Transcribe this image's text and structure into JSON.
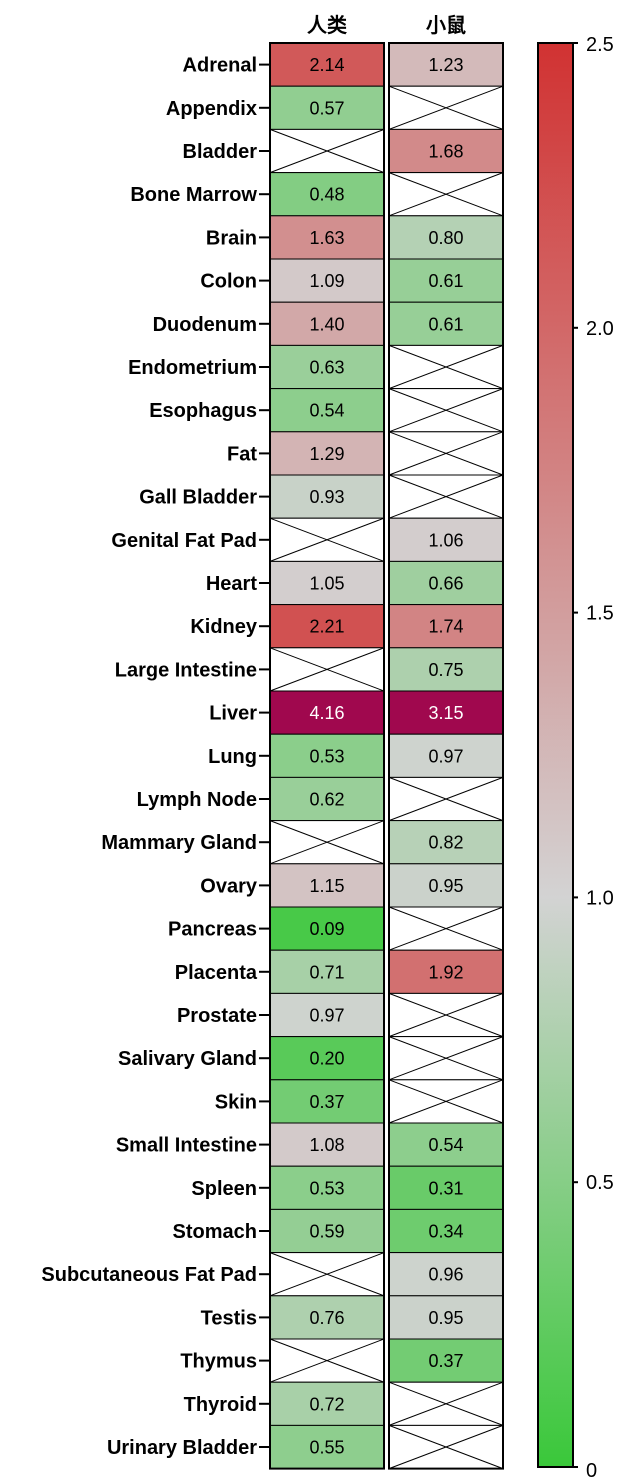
{
  "chart_data": {
    "type": "heatmap",
    "columns": [
      "人类",
      "小鼠"
    ],
    "rows": [
      {
        "label": "Adrenal",
        "values": [
          2.14,
          1.23
        ]
      },
      {
        "label": "Appendix",
        "values": [
          0.57,
          null
        ]
      },
      {
        "label": "Bladder",
        "values": [
          null,
          1.68
        ]
      },
      {
        "label": "Bone Marrow",
        "values": [
          0.48,
          null
        ]
      },
      {
        "label": "Brain",
        "values": [
          1.63,
          0.8
        ]
      },
      {
        "label": "Colon",
        "values": [
          1.09,
          0.61
        ]
      },
      {
        "label": "Duodenum",
        "values": [
          1.4,
          0.61
        ]
      },
      {
        "label": "Endometrium",
        "values": [
          0.63,
          null
        ]
      },
      {
        "label": "Esophagus",
        "values": [
          0.54,
          null
        ]
      },
      {
        "label": "Fat",
        "values": [
          1.29,
          null
        ]
      },
      {
        "label": "Gall Bladder",
        "values": [
          0.93,
          null
        ]
      },
      {
        "label": "Genital Fat Pad",
        "values": [
          null,
          1.06
        ]
      },
      {
        "label": "Heart",
        "values": [
          1.05,
          0.66
        ]
      },
      {
        "label": "Kidney",
        "values": [
          2.21,
          1.74
        ]
      },
      {
        "label": "Large Intestine",
        "values": [
          null,
          0.75
        ]
      },
      {
        "label": "Liver",
        "values": [
          4.16,
          3.15
        ]
      },
      {
        "label": "Lung",
        "values": [
          0.53,
          0.97
        ]
      },
      {
        "label": "Lymph Node",
        "values": [
          0.62,
          null
        ]
      },
      {
        "label": "Mammary Gland",
        "values": [
          null,
          0.82
        ]
      },
      {
        "label": "Ovary",
        "values": [
          1.15,
          0.95
        ]
      },
      {
        "label": "Pancreas",
        "values": [
          0.09,
          null
        ]
      },
      {
        "label": "Placenta",
        "values": [
          0.71,
          1.92
        ]
      },
      {
        "label": "Prostate",
        "values": [
          0.97,
          null
        ]
      },
      {
        "label": "Salivary Gland",
        "values": [
          0.2,
          null
        ]
      },
      {
        "label": "Skin",
        "values": [
          0.37,
          null
        ]
      },
      {
        "label": "Small Intestine",
        "values": [
          1.08,
          0.54
        ]
      },
      {
        "label": "Spleen",
        "values": [
          0.53,
          0.31
        ]
      },
      {
        "label": "Stomach",
        "values": [
          0.59,
          0.34
        ]
      },
      {
        "label": "Subcutaneous Fat Pad",
        "values": [
          null,
          0.96
        ]
      },
      {
        "label": "Testis",
        "values": [
          0.76,
          0.95
        ]
      },
      {
        "label": "Thymus",
        "values": [
          null,
          0.37
        ]
      },
      {
        "label": "Thyroid",
        "values": [
          0.72,
          null
        ]
      },
      {
        "label": "Urinary Bladder",
        "values": [
          0.55,
          null
        ]
      }
    ],
    "colorbar": {
      "range": [
        0,
        2.5
      ],
      "ticks": [
        "0",
        "0.5",
        "1.0",
        "1.5",
        "2.0",
        "2.5"
      ],
      "colors": {
        "low": "#3ac83a",
        "mid": "#d3d3d3",
        "high": "#d13232",
        "over": "#a0084e"
      }
    },
    "missing_marker": "crossed-box"
  }
}
